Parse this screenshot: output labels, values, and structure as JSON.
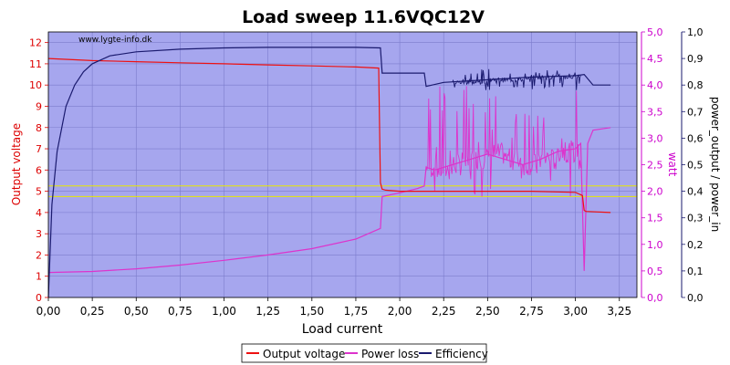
{
  "chart_data": {
    "type": "line",
    "title": "Load sweep 11.6VQC12V",
    "watermark": "www.lygte-info.dk",
    "xlabel": "Load current",
    "ylabel_left": "Output voltage",
    "ylabel_right1": "watt",
    "ylabel_right2": "power_output / power_in",
    "xlim": [
      0,
      3.35
    ],
    "ylim_left": [
      0,
      12.5
    ],
    "ylim_watt": [
      0,
      5.0
    ],
    "ylim_eff": [
      0,
      1.0
    ],
    "x_ticks": [
      "0,00",
      "0,25",
      "0,50",
      "0,75",
      "1,00",
      "1,25",
      "1,50",
      "1,75",
      "2,00",
      "2,25",
      "2,50",
      "2,75",
      "3,00",
      "3,25"
    ],
    "y_left_ticks": [
      "0",
      "1",
      "2",
      "3",
      "4",
      "5",
      "6",
      "7",
      "8",
      "9",
      "10",
      "11",
      "12"
    ],
    "y_watt_ticks": [
      "0,0",
      "0,5",
      "1,0",
      "1,5",
      "2,0",
      "2,5",
      "3,0",
      "3,5",
      "4,0",
      "4,5",
      "5,0"
    ],
    "y_eff_ticks": [
      "0,0",
      "0,1",
      "0,2",
      "0,3",
      "0,4",
      "0,5",
      "0,6",
      "0,7",
      "0,8",
      "0,9",
      "1,0"
    ],
    "reference_lines_left": [
      4.75,
      5.25
    ],
    "grid": true,
    "legend_position": "bottom",
    "colors": {
      "plot_bg": "#a6a6ee",
      "grid": "#7c7ccc",
      "voltage": "#ee1111",
      "power_loss": "#dd33cc",
      "efficiency": "#1a1a6e",
      "reference": "#e8e800",
      "axis_left": "#dd0000",
      "axis_watt": "#cc00cc",
      "axis_eff": "#1a1a6e"
    },
    "series": [
      {
        "name": "Output voltage",
        "axis": "left",
        "x": [
          0.0,
          0.25,
          0.5,
          0.75,
          1.0,
          1.25,
          1.5,
          1.75,
          1.88,
          1.89,
          1.9,
          1.92,
          2.0,
          2.25,
          2.5,
          2.75,
          3.0,
          3.04,
          3.05,
          3.06,
          3.2
        ],
        "y": [
          11.25,
          11.15,
          11.1,
          11.05,
          11.0,
          10.95,
          10.9,
          10.85,
          10.8,
          5.4,
          5.1,
          5.05,
          5.0,
          5.0,
          5.0,
          5.0,
          4.95,
          4.8,
          4.1,
          4.05,
          4.0
        ]
      },
      {
        "name": "Power loss",
        "axis": "watt",
        "x": [
          0.0,
          0.25,
          0.5,
          0.75,
          1.0,
          1.25,
          1.5,
          1.75,
          1.89,
          1.9,
          2.0,
          2.1,
          2.14,
          2.15,
          2.2,
          2.3,
          2.4,
          2.5,
          2.6,
          2.7,
          2.8,
          2.9,
          3.0,
          3.03,
          3.05,
          3.07,
          3.1,
          3.2
        ],
        "y": [
          0.47,
          0.49,
          0.54,
          0.61,
          0.7,
          0.8,
          0.92,
          1.1,
          1.3,
          1.9,
          1.97,
          2.05,
          2.1,
          2.45,
          2.4,
          2.5,
          2.6,
          2.7,
          2.6,
          2.5,
          2.6,
          2.75,
          2.8,
          2.9,
          0.5,
          2.9,
          3.15,
          3.2
        ]
      },
      {
        "name": "Efficiency",
        "axis": "eff",
        "x": [
          0.0,
          0.02,
          0.05,
          0.1,
          0.15,
          0.2,
          0.25,
          0.35,
          0.5,
          0.75,
          1.0,
          1.25,
          1.5,
          1.75,
          1.89,
          1.9,
          2.14,
          2.15,
          2.25,
          2.5,
          2.75,
          3.0,
          3.05,
          3.1,
          3.2
        ],
        "y": [
          0.0,
          0.35,
          0.55,
          0.72,
          0.8,
          0.85,
          0.88,
          0.91,
          0.925,
          0.935,
          0.94,
          0.942,
          0.942,
          0.942,
          0.94,
          0.845,
          0.845,
          0.795,
          0.81,
          0.82,
          0.83,
          0.835,
          0.84,
          0.8,
          0.8
        ]
      }
    ],
    "noise_ranges": [
      {
        "series": "Power loss",
        "x_start": 2.15,
        "x_end": 3.03,
        "y_min": 1.9,
        "y_max": 4.0
      },
      {
        "series": "Efficiency",
        "x_start": 2.3,
        "x_end": 3.03,
        "y_min": 0.78,
        "y_max": 0.86
      }
    ]
  },
  "legend": [
    {
      "label": "Output voltage",
      "color": "#ee1111"
    },
    {
      "label": "Power loss",
      "color": "#dd33cc"
    },
    {
      "label": "Efficiency",
      "color": "#1a1a6e"
    }
  ]
}
